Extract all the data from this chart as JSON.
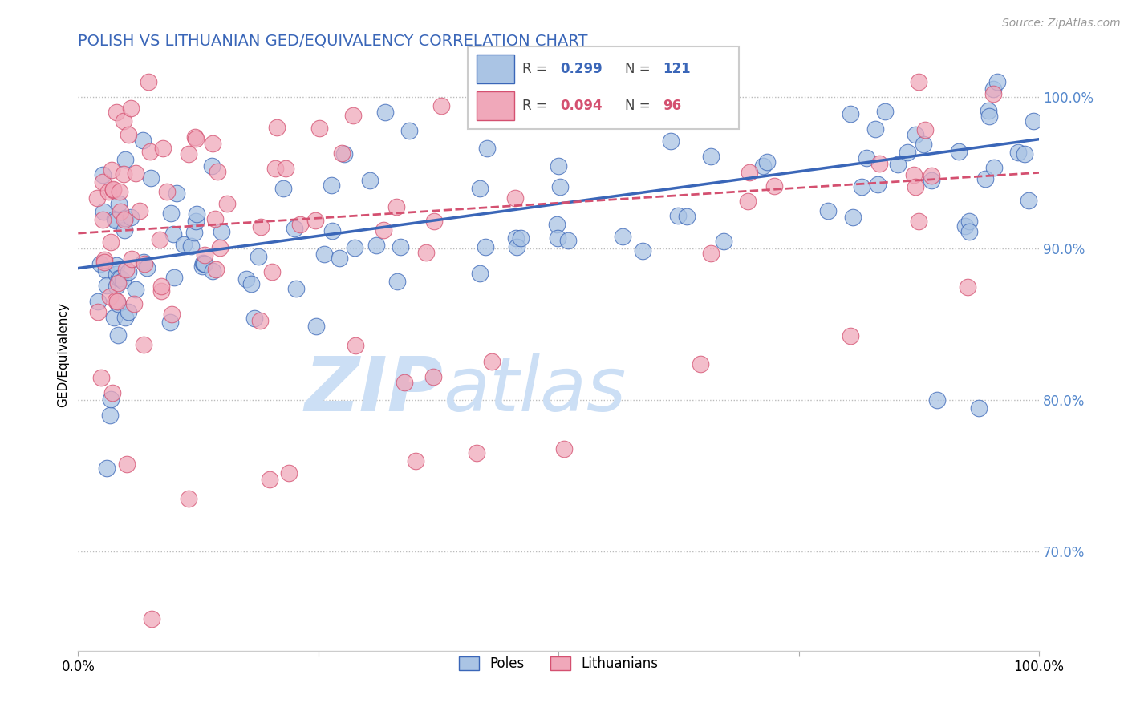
{
  "title": "POLISH VS LITHUANIAN GED/EQUIVALENCY CORRELATION CHART",
  "source_text": "Source: ZipAtlas.com",
  "ylabel": "GED/Equivalency",
  "xlim": [
    0.0,
    1.0
  ],
  "ylim": [
    0.635,
    1.025
  ],
  "yticks": [
    0.7,
    0.8,
    0.9,
    1.0
  ],
  "ytick_labels": [
    "70.0%",
    "80.0%",
    "90.0%",
    "100.0%"
  ],
  "blue_R": 0.299,
  "blue_N": 121,
  "pink_R": 0.094,
  "pink_N": 96,
  "blue_color": "#aac4e4",
  "pink_color": "#f0a8ba",
  "blue_line_color": "#3a66b8",
  "pink_line_color": "#d45070",
  "watermark_color": "#ccdff5",
  "legend_label_blue": "Poles",
  "legend_label_pink": "Lithuanians",
  "title_color": "#3a66b8",
  "ytick_color": "#5588cc",
  "blue_slope": 0.085,
  "blue_intercept": 0.887,
  "pink_slope": 0.04,
  "pink_intercept": 0.91
}
